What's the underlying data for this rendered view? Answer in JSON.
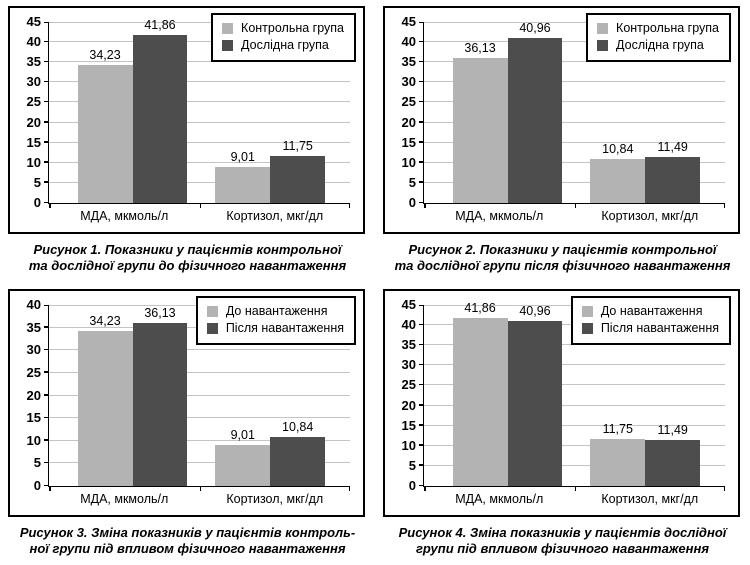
{
  "colors": {
    "series_light": "#b3b3b3",
    "series_dark": "#4d4d4d",
    "gridline": "#c4c4c4",
    "axis": "#000000",
    "frame_border": "#000000",
    "background": "#ffffff",
    "text": "#000000"
  },
  "chart_data": [
    {
      "type": "bar",
      "categories": [
        "МДА, мкмоль/л",
        "Кортизол, мкг/дл"
      ],
      "series": [
        {
          "name": "Контрольна група",
          "values": [
            34.23,
            9.01
          ],
          "labels": [
            "34,23",
            "9,01"
          ],
          "color_key": "series_light"
        },
        {
          "name": "Дослідна група",
          "values": [
            41.86,
            11.75
          ],
          "labels": [
            "41,86",
            "11,75"
          ],
          "color_key": "series_dark"
        }
      ],
      "ylim": [
        0,
        45
      ],
      "ystep": 5,
      "grid": true,
      "legend_position": "top-right",
      "caption_lines": [
        "Рисунок 1.  Показники у пацієнтів контрольної",
        "та дослідної групи до фізичного навантаження"
      ]
    },
    {
      "type": "bar",
      "categories": [
        "МДА, мкмоль/л",
        "Кортизол, мкг/дл"
      ],
      "series": [
        {
          "name": "Контрольна група",
          "values": [
            36.13,
            10.84
          ],
          "labels": [
            "36,13",
            "10,84"
          ],
          "color_key": "series_light"
        },
        {
          "name": "Дослідна група",
          "values": [
            40.96,
            11.49
          ],
          "labels": [
            "40,96",
            "11,49"
          ],
          "color_key": "series_dark"
        }
      ],
      "ylim": [
        0,
        45
      ],
      "ystep": 5,
      "grid": true,
      "legend_position": "top-right",
      "caption_lines": [
        "Рисунок 2.  Показники у пацієнтів контрольної",
        "та дослідної групи після фізичного навантаження"
      ]
    },
    {
      "type": "bar",
      "categories": [
        "МДА, мкмоль/л",
        "Кортизол, мкг/дл"
      ],
      "series": [
        {
          "name": "До навантаження",
          "values": [
            34.23,
            9.01
          ],
          "labels": [
            "34,23",
            "9,01"
          ],
          "color_key": "series_light"
        },
        {
          "name": "Після навантаження",
          "values": [
            36.13,
            10.84
          ],
          "labels": [
            "36,13",
            "10,84"
          ],
          "color_key": "series_dark"
        }
      ],
      "ylim": [
        0,
        40
      ],
      "ystep": 5,
      "grid": true,
      "legend_position": "top-right",
      "caption_lines": [
        "Рисунок 3.  Зміна показників у пацієнтів контроль-",
        "ної групи під впливом фізичного навантаження"
      ]
    },
    {
      "type": "bar",
      "categories": [
        "МДА, мкмоль/л",
        "Кортизол, мкг/дл"
      ],
      "series": [
        {
          "name": "До навантаження",
          "values": [
            41.86,
            11.75
          ],
          "labels": [
            "41,86",
            "11,75"
          ],
          "color_key": "series_light"
        },
        {
          "name": "Після навантаження",
          "values": [
            40.96,
            11.49
          ],
          "labels": [
            "40,96",
            "11,49"
          ],
          "color_key": "series_dark"
        }
      ],
      "ylim": [
        0,
        45
      ],
      "ystep": 5,
      "grid": true,
      "legend_position": "top-right",
      "caption_lines": [
        "Рисунок 4.  Зміна показників у пацієнтів дослідної",
        "групи під впливом фізичного навантаження"
      ]
    }
  ]
}
